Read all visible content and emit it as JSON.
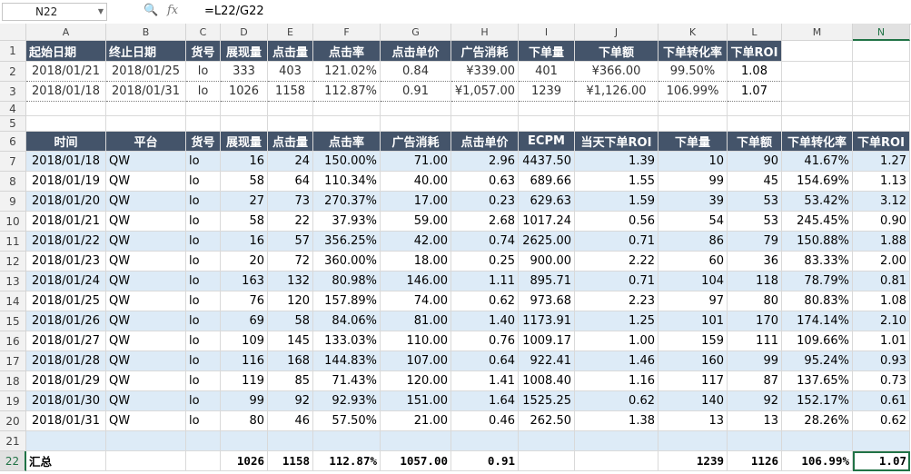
{
  "formula_bar": {
    "name_box": "N22",
    "fx_label": "fx",
    "formula": "=L22/G22"
  },
  "columns": [
    "A",
    "B",
    "C",
    "D",
    "E",
    "F",
    "G",
    "H",
    "I",
    "J",
    "K",
    "L",
    "M",
    "N"
  ],
  "selected_column": "N",
  "selected_row": "22",
  "rows_numbers": [
    "1",
    "2",
    "3",
    "4",
    "5",
    "6",
    "7",
    "8",
    "9",
    "10",
    "11",
    "12",
    "13",
    "14",
    "15",
    "16",
    "17",
    "18",
    "19",
    "20",
    "21",
    "22"
  ],
  "summary_table": {
    "headers": [
      "起始日期",
      "终止日期",
      "货号",
      "展现量",
      "点击量",
      "点击率",
      "点击单价",
      "广告消耗",
      "下单量",
      "下单额",
      "下单转化率",
      "下单ROI"
    ],
    "rows": [
      [
        "2018/01/21",
        "2018/01/25",
        "lo",
        "333",
        "403",
        "121.02%",
        "0.84",
        "¥339.00",
        "401",
        "¥366.00",
        "99.50%",
        "1.08"
      ],
      [
        "2018/01/18",
        "2018/01/31",
        "lo",
        "1026",
        "1158",
        "112.87%",
        "0.91",
        "¥1,057.00",
        "1239",
        "¥1,126.00",
        "106.99%",
        "1.07"
      ]
    ]
  },
  "daily_table": {
    "headers": [
      "时间",
      "平台",
      "货号",
      "展现量",
      "点击量",
      "点击率",
      "广告消耗",
      "点击单价",
      "ECPM",
      "当天下单ROI",
      "下单量",
      "下单额",
      "下单转化率",
      "下单ROI"
    ],
    "rows": [
      [
        "2018/01/18",
        "QW",
        "lo",
        "16",
        "24",
        "150.00%",
        "71.00",
        "2.96",
        "4437.50",
        "1.39",
        "10",
        "90",
        "41.67%",
        "1.27"
      ],
      [
        "2018/01/19",
        "QW",
        "lo",
        "58",
        "64",
        "110.34%",
        "40.00",
        "0.63",
        "689.66",
        "1.55",
        "99",
        "45",
        "154.69%",
        "1.13"
      ],
      [
        "2018/01/20",
        "QW",
        "lo",
        "27",
        "73",
        "270.37%",
        "17.00",
        "0.23",
        "629.63",
        "1.59",
        "39",
        "53",
        "53.42%",
        "3.12"
      ],
      [
        "2018/01/21",
        "QW",
        "lo",
        "58",
        "22",
        "37.93%",
        "59.00",
        "2.68",
        "1017.24",
        "0.56",
        "54",
        "53",
        "245.45%",
        "0.90"
      ],
      [
        "2018/01/22",
        "QW",
        "lo",
        "16",
        "57",
        "356.25%",
        "42.00",
        "0.74",
        "2625.00",
        "0.71",
        "86",
        "79",
        "150.88%",
        "1.88"
      ],
      [
        "2018/01/23",
        "QW",
        "lo",
        "20",
        "72",
        "360.00%",
        "18.00",
        "0.25",
        "900.00",
        "2.22",
        "60",
        "36",
        "83.33%",
        "2.00"
      ],
      [
        "2018/01/24",
        "QW",
        "lo",
        "163",
        "132",
        "80.98%",
        "146.00",
        "1.11",
        "895.71",
        "0.71",
        "104",
        "118",
        "78.79%",
        "0.81"
      ],
      [
        "2018/01/25",
        "QW",
        "lo",
        "76",
        "120",
        "157.89%",
        "74.00",
        "0.62",
        "973.68",
        "2.23",
        "97",
        "80",
        "80.83%",
        "1.08"
      ],
      [
        "2018/01/26",
        "QW",
        "lo",
        "69",
        "58",
        "84.06%",
        "81.00",
        "1.40",
        "1173.91",
        "1.25",
        "101",
        "170",
        "174.14%",
        "2.10"
      ],
      [
        "2018/01/27",
        "QW",
        "lo",
        "109",
        "145",
        "133.03%",
        "110.00",
        "0.76",
        "1009.17",
        "1.00",
        "159",
        "111",
        "109.66%",
        "1.01"
      ],
      [
        "2018/01/28",
        "QW",
        "lo",
        "116",
        "168",
        "144.83%",
        "107.00",
        "0.64",
        "922.41",
        "1.46",
        "160",
        "99",
        "95.24%",
        "0.93"
      ],
      [
        "2018/01/29",
        "QW",
        "lo",
        "119",
        "85",
        "71.43%",
        "120.00",
        "1.41",
        "1008.40",
        "1.16",
        "117",
        "87",
        "137.65%",
        "0.73"
      ],
      [
        "2018/01/30",
        "QW",
        "lo",
        "99",
        "92",
        "92.93%",
        "151.00",
        "1.64",
        "1525.25",
        "0.62",
        "140",
        "92",
        "152.17%",
        "0.61"
      ],
      [
        "2018/01/31",
        "QW",
        "lo",
        "80",
        "46",
        "57.50%",
        "21.00",
        "0.46",
        "262.50",
        "1.38",
        "13",
        "13",
        "28.26%",
        "0.62"
      ]
    ]
  },
  "total_row": [
    "汇总",
    "",
    "",
    "1026",
    "1158",
    "112.87%",
    "1057.00",
    "0.91",
    "",
    "",
    "1239",
    "1126",
    "106.99%",
    "1.07"
  ],
  "colors": {
    "header_bg": "#44546a",
    "band_blue": "#ddebf7",
    "selection": "#217346"
  }
}
